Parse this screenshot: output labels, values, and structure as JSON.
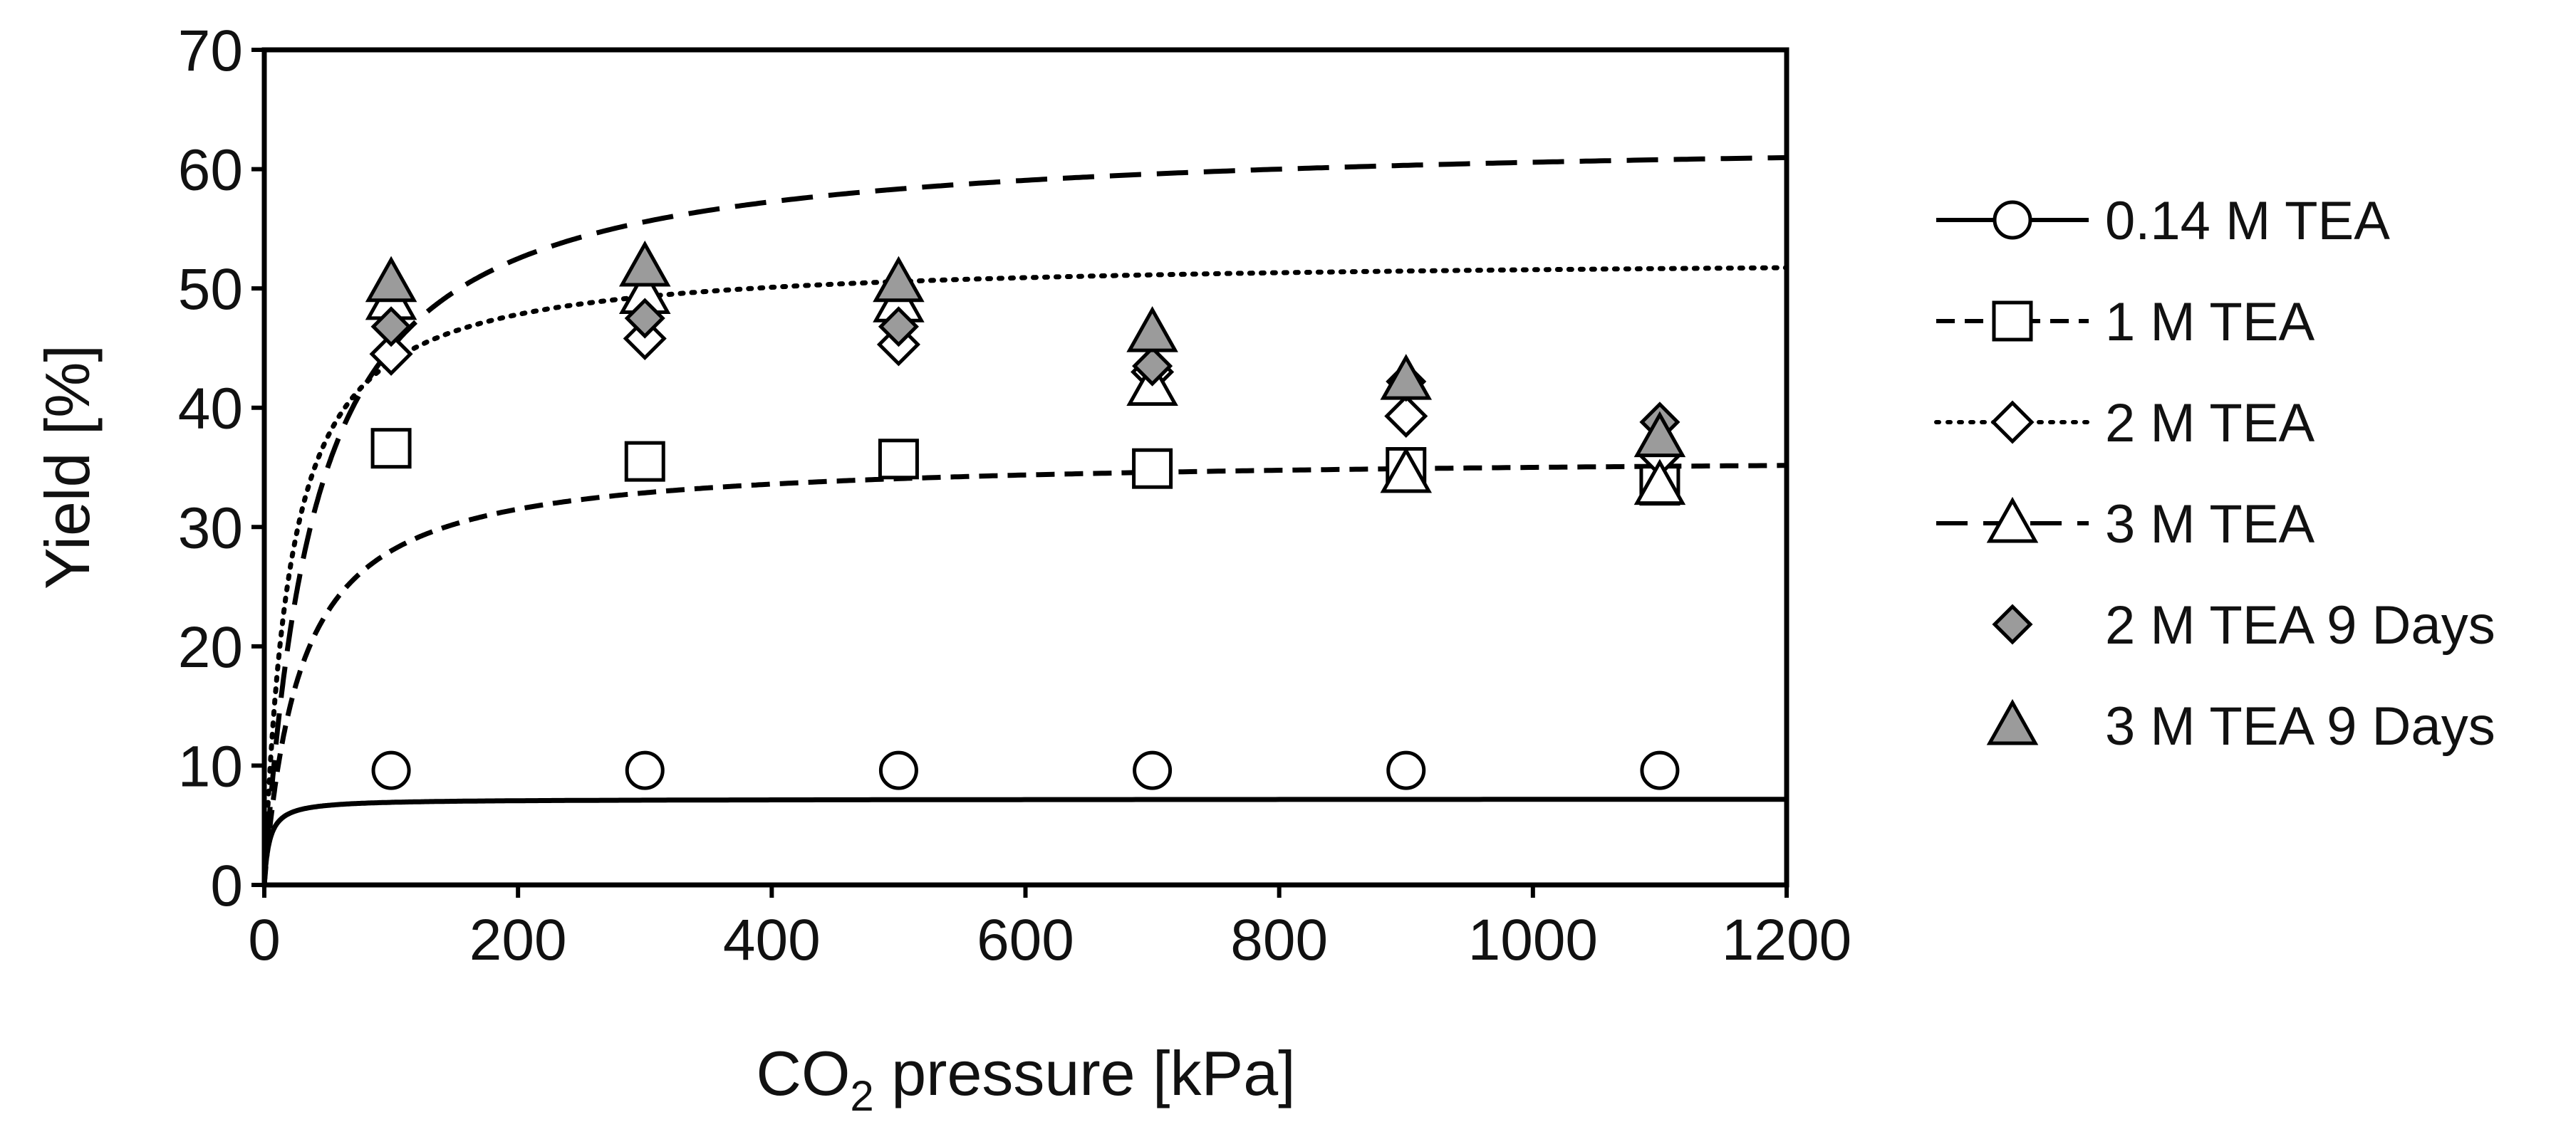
{
  "chart_data": {
    "type": "scatter",
    "title": "",
    "xlabel_main": "CO",
    "xlabel_sub": "2",
    "xlabel_rest": " pressure [kPa]",
    "ylabel": "Yield [%]",
    "xlim": [
      0,
      1200
    ],
    "ylim": [
      0,
      70
    ],
    "xticks": [
      0,
      200,
      400,
      600,
      800,
      1000,
      1200
    ],
    "yticks": [
      0,
      10,
      20,
      30,
      40,
      50,
      60,
      70
    ],
    "xtick_labels": [
      "0",
      "200",
      "400",
      "600",
      "800",
      "1000",
      "1200"
    ],
    "ytick_labels": [
      "0",
      "10",
      "20",
      "30",
      "40",
      "50",
      "60",
      "70"
    ],
    "grid": false,
    "legend_position": "right",
    "series": [
      {
        "name": "0.14 M TEA",
        "marker": "circle",
        "fill": "#ffffff",
        "line": "solid",
        "x": [
          100,
          300,
          500,
          700,
          900,
          1100
        ],
        "y": [
          9.6,
          9.6,
          9.6,
          9.6,
          9.6,
          9.6
        ],
        "fit": {
          "qmax": 7.2,
          "K": 0.25
        }
      },
      {
        "name": "1 M TEA",
        "marker": "square",
        "fill": "#ffffff",
        "line": "dashed",
        "x": [
          100,
          300,
          500,
          700,
          900,
          1100
        ],
        "y": [
          36.6,
          35.5,
          35.7,
          34.9,
          35.0,
          33.5
        ],
        "fit": {
          "qmax": 36.0,
          "K": 0.035
        }
      },
      {
        "name": "2 M TEA",
        "marker": "diamond",
        "fill": "#ffffff",
        "line": "dotted",
        "x": [
          100,
          300,
          500,
          700,
          900,
          1100
        ],
        "y": [
          44.5,
          45.8,
          45.3,
          43.0,
          39.3,
          36.0
        ],
        "fit": {
          "qmax": 52.6,
          "K": 0.05
        }
      },
      {
        "name": "3 M TEA",
        "marker": "triangle",
        "fill": "#ffffff",
        "line": "longdash",
        "x": [
          100,
          300,
          500,
          700,
          900,
          1100
        ],
        "y": [
          49.0,
          49.5,
          48.8,
          41.8,
          34.5,
          33.5
        ],
        "fit": {
          "qmax": 63.0,
          "K": 0.025
        }
      },
      {
        "name": "2 M TEA 9 Days",
        "marker": "diamond",
        "fill": "#9b9b9b",
        "line": "none",
        "x": [
          100,
          300,
          500,
          700,
          900,
          1100
        ],
        "y": [
          46.8,
          47.5,
          46.8,
          43.5,
          42.2,
          38.8
        ],
        "fit": null
      },
      {
        "name": "3 M TEA 9 Days",
        "marker": "triangle",
        "fill": "#9b9b9b",
        "line": "none",
        "x": [
          100,
          300,
          500,
          700,
          900,
          1100
        ],
        "y": [
          50.5,
          51.8,
          50.5,
          46.3,
          42.3,
          37.5
        ],
        "fit": null
      }
    ]
  }
}
